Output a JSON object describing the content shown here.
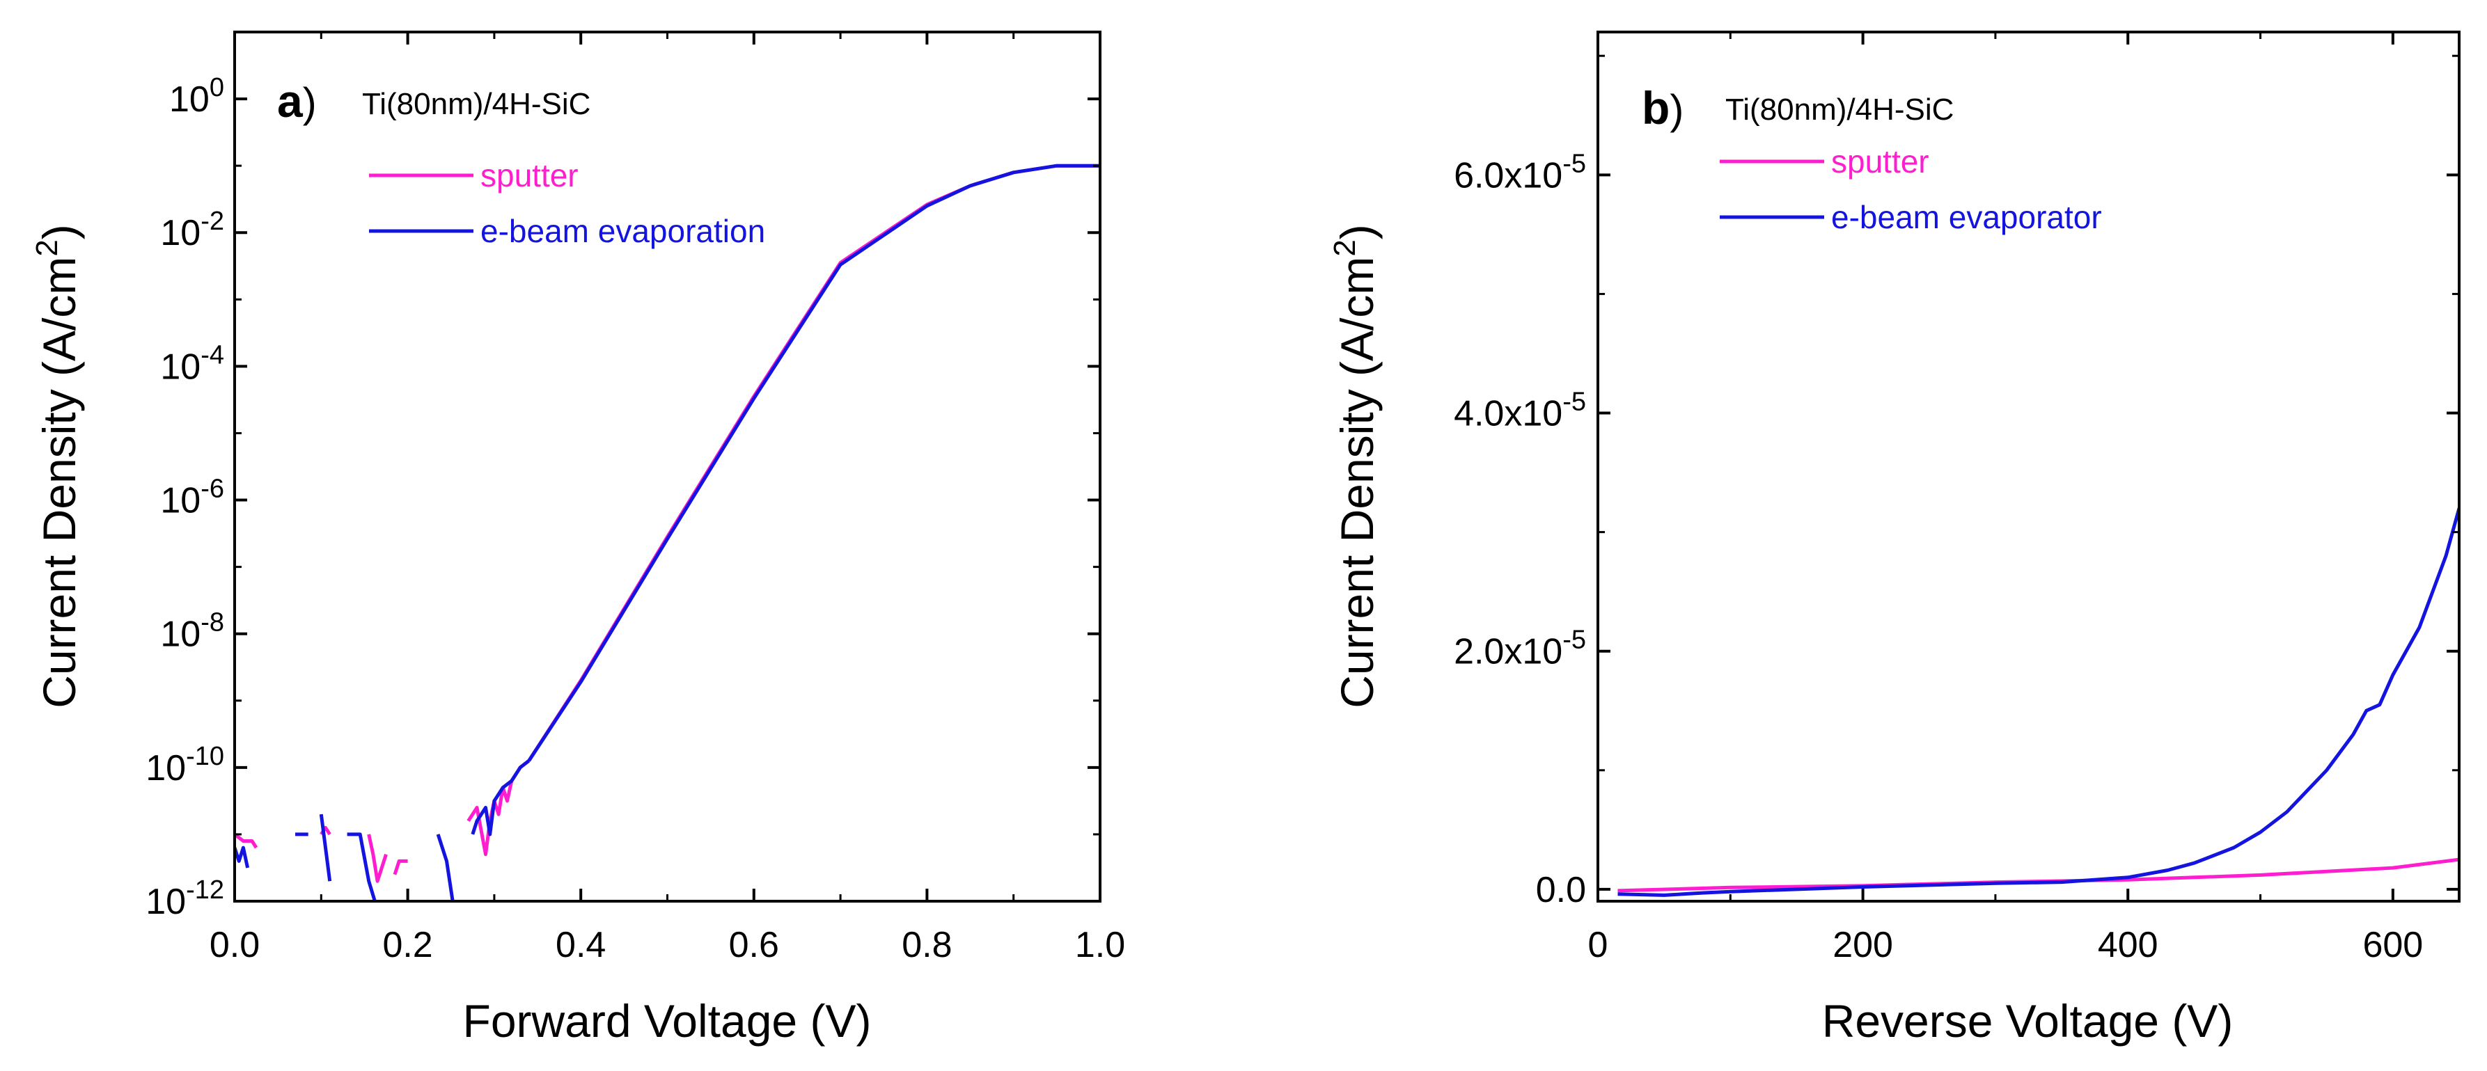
{
  "chart_data": [
    {
      "type": "line",
      "panel": "a)",
      "panel_letter": "a",
      "panel_paren": ")",
      "annotation": "Ti(80nm)/4H-SiC",
      "xlabel": "Forward Voltage (V)",
      "ylabel_main": "Current Density (A/cm",
      "ylabel_sup": "2",
      "ylabel_close": ")",
      "xlim": [
        0.0,
        1.0
      ],
      "ylim": [
        1e-12,
        10
      ],
      "yscale": "log",
      "xticks": [
        "0.0",
        "0.2",
        "0.4",
        "0.6",
        "0.8",
        "1.0"
      ],
      "xtick_values": [
        0.0,
        0.2,
        0.4,
        0.6,
        0.8,
        1.0
      ],
      "yticks": [
        {
          "base": "10",
          "exp": "-12",
          "value": -12
        },
        {
          "base": "10",
          "exp": "-10",
          "value": -10
        },
        {
          "base": "10",
          "exp": "-8",
          "value": -8
        },
        {
          "base": "10",
          "exp": "-6",
          "value": -6
        },
        {
          "base": "10",
          "exp": "-4",
          "value": -4
        },
        {
          "base": "10",
          "exp": "-2",
          "value": -2
        },
        {
          "base": "10",
          "exp": "0",
          "value": 0
        }
      ],
      "legend": [
        {
          "name": "sputter",
          "color": "#ff1ecf"
        },
        {
          "name": "e-beam evaporation",
          "color": "#1414e0"
        }
      ],
      "series": [
        {
          "name": "sputter",
          "color": "#ff1ecf",
          "segments": [
            {
              "x": [
                0.0,
                0.01,
                0.02,
                0.025
              ],
              "log10y": [
                -11.0,
                -11.1,
                -11.1,
                -11.2
              ]
            },
            {
              "x": [
                0.1,
                0.105,
                0.11
              ],
              "log10y": [
                -11.0,
                -10.9,
                -11.0
              ]
            },
            {
              "x": [
                0.155,
                0.16,
                0.165,
                0.17,
                0.175
              ],
              "log10y": [
                -11.0,
                -11.3,
                -11.7,
                -11.5,
                -11.3
              ]
            },
            {
              "x": [
                0.185,
                0.19,
                0.2
              ],
              "log10y": [
                -11.6,
                -11.4,
                -11.4
              ]
            },
            {
              "x": [
                0.27,
                0.28,
                0.29,
                0.295,
                0.3,
                0.305,
                0.31,
                0.315,
                0.32,
                0.33,
                0.34
              ],
              "log10y": [
                -10.8,
                -10.6,
                -11.3,
                -10.8,
                -10.5,
                -10.7,
                -10.3,
                -10.5,
                -10.2,
                -10.0,
                -9.9
              ]
            },
            {
              "x": [
                0.34,
                0.4,
                0.5,
                0.6,
                0.7,
                0.8,
                0.85,
                0.9,
                0.95,
                1.0
              ],
              "log10y": [
                -9.9,
                -8.7,
                -6.55,
                -4.45,
                -2.45,
                -1.58,
                -1.3,
                -1.1,
                -1.0,
                -1.0
              ]
            }
          ]
        },
        {
          "name": "e-beam evaporation",
          "color": "#1414e0",
          "segments": [
            {
              "x": [
                0.0,
                0.005,
                0.01,
                0.015
              ],
              "log10y": [
                -11.2,
                -11.4,
                -11.2,
                -11.5
              ]
            },
            {
              "x": [
                0.07,
                0.085
              ],
              "log10y": [
                -11.0,
                -11.0
              ]
            },
            {
              "x": [
                0.1,
                0.105,
                0.11
              ],
              "log10y": [
                -10.7,
                -11.2,
                -11.7
              ]
            },
            {
              "x": [
                0.13,
                0.145,
                0.155,
                0.162
              ],
              "log10y": [
                -11.0,
                -11.0,
                -11.7,
                -12.0
              ]
            },
            {
              "x": [
                0.235,
                0.245,
                0.252
              ],
              "log10y": [
                -11.0,
                -11.4,
                -12.0
              ]
            },
            {
              "x": [
                0.275,
                0.28,
                0.29,
                0.295,
                0.3,
                0.31,
                0.32,
                0.33,
                0.34
              ],
              "log10y": [
                -11.0,
                -10.8,
                -10.6,
                -11.0,
                -10.5,
                -10.3,
                -10.2,
                -10.0,
                -9.9
              ]
            },
            {
              "x": [
                0.34,
                0.4,
                0.5,
                0.6,
                0.7,
                0.8,
                0.85,
                0.9,
                0.95,
                1.0
              ],
              "log10y": [
                -9.9,
                -8.72,
                -6.58,
                -4.48,
                -2.48,
                -1.6,
                -1.3,
                -1.1,
                -1.0,
                -1.0
              ]
            }
          ]
        }
      ]
    },
    {
      "type": "line",
      "panel": "b)",
      "panel_letter": "b",
      "panel_paren": ")",
      "annotation": "Ti(80nm)/4H-SiC",
      "xlabel": "Reverse Voltage (V)",
      "ylabel_main": "Current Density (A/cm",
      "ylabel_sup": "2",
      "ylabel_close": ")",
      "xlim": [
        0,
        650
      ],
      "ylim": [
        -1e-06,
        7.2e-05
      ],
      "yscale": "linear",
      "xticks": [
        "0",
        "200",
        "400",
        "600"
      ],
      "xtick_values": [
        0,
        200,
        400,
        600
      ],
      "yticks": [
        {
          "mant": "0.0",
          "exp": "",
          "value": 0
        },
        {
          "mant": "2.0x10",
          "exp": "-5",
          "value": 2e-05
        },
        {
          "mant": "4.0x10",
          "exp": "-5",
          "value": 4e-05
        },
        {
          "mant": "6.0x10",
          "exp": "-5",
          "value": 6e-05
        }
      ],
      "legend": [
        {
          "name": "sputter",
          "color": "#ff1ecf"
        },
        {
          "name": "e-beam evaporator",
          "color": "#1414e0"
        }
      ],
      "series": [
        {
          "name": "sputter",
          "color": "#ff1ecf",
          "x": [
            15,
            100,
            200,
            300,
            400,
            450,
            500,
            550,
            600,
            650
          ],
          "y": [
            -1.2e-07,
            1.5e-07,
            3e-07,
            6e-07,
            8e-07,
            1e-06,
            1.2e-06,
            1.5e-06,
            1.8e-06,
            2.5e-06
          ]
        },
        {
          "name": "e-beam evaporator",
          "color": "#1414e0",
          "x": [
            15,
            50,
            80,
            100,
            200,
            300,
            350,
            400,
            430,
            450,
            480,
            500,
            520,
            550,
            570,
            580,
            590,
            600,
            620,
            640,
            650
          ],
          "y": [
            -4e-07,
            -5e-07,
            -3e-07,
            -2e-07,
            2e-07,
            5e-07,
            6e-07,
            1e-06,
            1.6e-06,
            2.2e-06,
            3.5e-06,
            4.8e-06,
            6.5e-06,
            1e-05,
            1.3e-05,
            1.5e-05,
            1.55e-05,
            1.8e-05,
            2.2e-05,
            2.8e-05,
            3.2e-05
          ]
        }
      ]
    }
  ]
}
